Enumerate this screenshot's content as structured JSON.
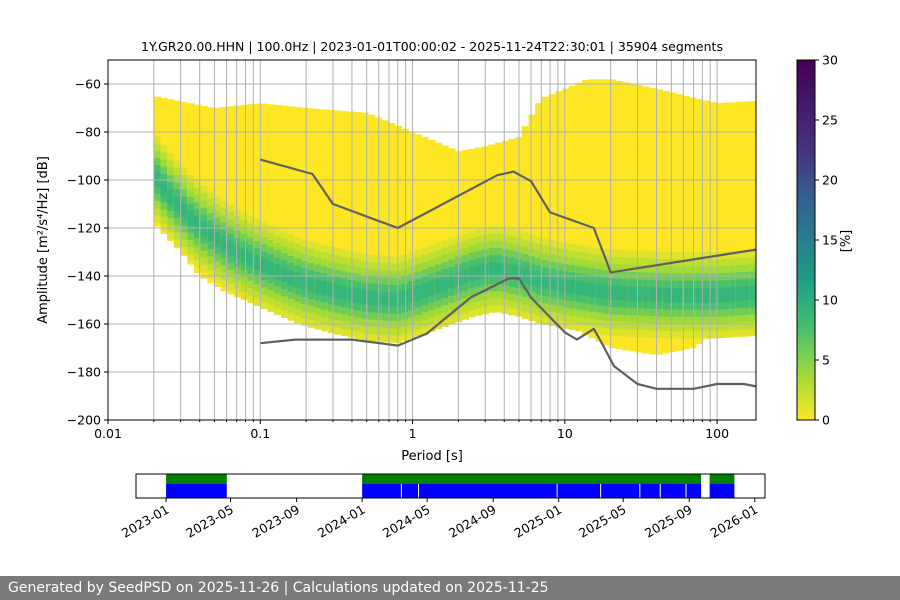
{
  "chart_data": [
    {
      "type": "heatmap",
      "title": "1Y.GR20.00.HHN | 100.0Hz | 2023-01-01T00:00:02 - 2025-11-24T22:30:01 | 35904 segments",
      "xlabel": "Period [s]",
      "ylabel": "Amplitude [m²/s⁴/Hz] [dB]",
      "x_scale": "log",
      "xlim": [
        0.01,
        180
      ],
      "ylim": [
        -200,
        -50
      ],
      "x_ticks": [
        0.01,
        0.1,
        1,
        10,
        100
      ],
      "x_tick_labels": [
        "0.01",
        "0.1",
        "1",
        "10",
        "100"
      ],
      "y_ticks": [
        -200,
        -180,
        -160,
        -140,
        -120,
        -100,
        -80,
        -60
      ],
      "y_tick_labels": [
        "−200",
        "−180",
        "−160",
        "−140",
        "−120",
        "−100",
        "−80",
        "−60"
      ],
      "grid": true,
      "colorbar": {
        "label": "[%]",
        "min": 0,
        "max": 30,
        "ticks": [
          0,
          5,
          10,
          15,
          20,
          25,
          30
        ],
        "tick_labels": [
          "0",
          "5",
          "10",
          "15",
          "20",
          "25",
          "30"
        ],
        "colormap": "viridis"
      },
      "density": {
        "period_range": [
          0.02,
          180
        ],
        "mode_curve": [
          [
            0.02,
            -98
          ],
          [
            0.025,
            -106
          ],
          [
            0.035,
            -116
          ],
          [
            0.05,
            -124
          ],
          [
            0.07,
            -130
          ],
          [
            0.1,
            -135
          ],
          [
            0.15,
            -140
          ],
          [
            0.2,
            -143
          ],
          [
            0.3,
            -146
          ],
          [
            0.5,
            -149
          ],
          [
            0.8,
            -150
          ],
          [
            1,
            -148
          ],
          [
            1.5,
            -144
          ],
          [
            2.5,
            -139
          ],
          [
            3.5,
            -137
          ],
          [
            5,
            -139
          ],
          [
            7,
            -142
          ],
          [
            10,
            -144
          ],
          [
            20,
            -147
          ],
          [
            50,
            -148
          ],
          [
            100,
            -148
          ],
          [
            180,
            -147
          ]
        ],
        "lower_edge": [
          [
            0.02,
            -118
          ],
          [
            0.03,
            -130
          ],
          [
            0.04,
            -140
          ],
          [
            0.06,
            -147
          ],
          [
            0.1,
            -153
          ],
          [
            0.2,
            -159
          ],
          [
            0.3,
            -162
          ],
          [
            0.5,
            -163
          ],
          [
            0.8,
            -160
          ],
          [
            1.5,
            -152
          ],
          [
            2.5,
            -148
          ],
          [
            3.5,
            -144
          ],
          [
            5,
            -146
          ],
          [
            7,
            -153
          ],
          [
            10,
            -160
          ],
          [
            20,
            -170
          ],
          [
            40,
            -173
          ],
          [
            70,
            -170
          ],
          [
            100,
            -163
          ],
          [
            180,
            -162
          ]
        ],
        "upper_edge": [
          [
            0.02,
            -65
          ],
          [
            0.05,
            -70
          ],
          [
            0.1,
            -68
          ],
          [
            0.2,
            -70
          ],
          [
            0.5,
            -72
          ],
          [
            1,
            -80
          ],
          [
            2,
            -88
          ],
          [
            3,
            -86
          ],
          [
            5,
            -82
          ],
          [
            7,
            -66
          ],
          [
            10,
            -62
          ],
          [
            14,
            -58
          ],
          [
            20,
            -58
          ],
          [
            40,
            -62
          ],
          [
            100,
            -68
          ],
          [
            180,
            -67
          ]
        ]
      },
      "series": [
        {
          "color": "#606060",
          "points": [
            [
              0.1,
              -91.5
            ],
            [
              0.22,
              -97.5
            ],
            [
              0.3,
              -110
            ],
            [
              0.8,
              -120
            ],
            [
              3.6,
              -98
            ],
            [
              4.6,
              -96.5
            ],
            [
              6,
              -100.5
            ],
            [
              8,
              -113.5
            ],
            [
              15.5,
              -120
            ],
            [
              20,
              -138.5
            ],
            [
              180,
              -129
            ]
          ]
        },
        {
          "color": "#606060",
          "points": [
            [
              0.1,
              -168
            ],
            [
              0.17,
              -166.5
            ],
            [
              0.4,
              -166.5
            ],
            [
              0.8,
              -169
            ],
            [
              1.24,
              -164
            ],
            [
              2.4,
              -149
            ],
            [
              4.3,
              -141
            ],
            [
              5,
              -141
            ],
            [
              6,
              -149
            ],
            [
              10,
              -163.5
            ],
            [
              12,
              -166.5
            ],
            [
              15.5,
              -162
            ],
            [
              17.5,
              -168
            ],
            [
              21,
              -177.5
            ],
            [
              30,
              -185
            ],
            [
              40,
              -187
            ],
            [
              70,
              -187
            ],
            [
              100,
              -185
            ],
            [
              150,
              -185
            ],
            [
              180,
              -186
            ]
          ]
        }
      ]
    },
    {
      "type": "timeline",
      "x_tick_labels": [
        "2023-01",
        "2023-05",
        "2023-09",
        "2024-01",
        "2024-05",
        "2024-09",
        "2025-01",
        "2025-05",
        "2025-09",
        "2026-01"
      ],
      "x_ticks": [
        "2023-01-01",
        "2023-05-01",
        "2023-09-01",
        "2024-01-01",
        "2024-05-01",
        "2024-09-01",
        "2025-01-01",
        "2025-05-01",
        "2025-09-01",
        "2026-01-01"
      ],
      "xlim": [
        "2022-11-06",
        "2026-01-20"
      ],
      "legend": false,
      "series": [
        {
          "color": "#008000",
          "segments": [
            [
              "2023-01-01",
              "2023-04-24"
            ],
            [
              "2024-01-01",
              "2025-09-23"
            ],
            [
              "2025-10-09",
              "2025-11-24"
            ]
          ]
        },
        {
          "color": "#0000ff",
          "segments": [
            [
              "2023-01-01",
              "2023-04-24"
            ],
            [
              "2024-01-01",
              "2025-09-23"
            ],
            [
              "2025-10-09",
              "2025-11-24"
            ]
          ],
          "gaps": [
            "2024-03-14",
            "2024-04-15",
            "2024-12-29",
            "2025-03-20",
            "2025-06-01",
            "2025-07-09",
            "2025-08-26"
          ]
        }
      ]
    }
  ],
  "footer": {
    "text": "Generated by SeedPSD on 2025-11-26 | Calculations updated on 2025-11-25"
  }
}
